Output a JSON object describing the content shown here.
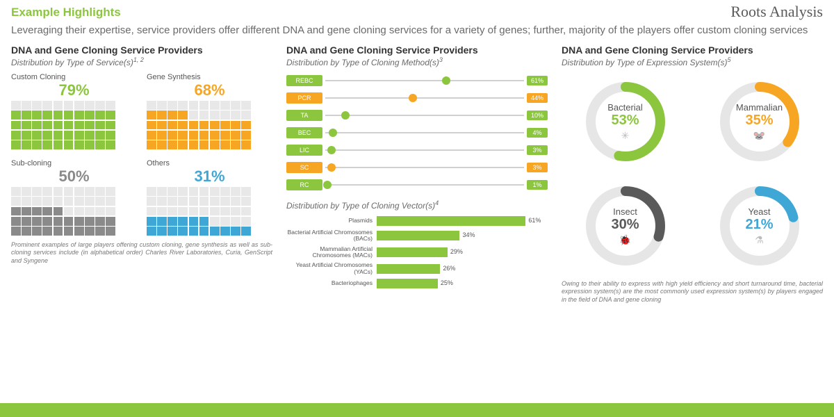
{
  "brand": "Roots Analysis",
  "header": {
    "title": "Example Highlights",
    "subtitle": "Leveraging their expertise, service providers offer different DNA and gene cloning services for a variety of genes; further, majority of the players offer custom cloning services"
  },
  "palette": {
    "green": "#8cc63f",
    "orange": "#f6a623",
    "grey": "#8a8a8a",
    "blue": "#3fa7d6",
    "darkgrey": "#5a5a5a",
    "cellEmpty": "#e8e8e8"
  },
  "col1": {
    "title": "DNA and Gene Cloning Service Providers",
    "subtitle": "Distribution by Type of Service(s)",
    "supers": "1, 2",
    "waffles": [
      {
        "label": "Custom Cloning",
        "pct": 79,
        "color": "#8cc63f",
        "rows": 5,
        "cols": 10
      },
      {
        "label": "Gene Synthesis",
        "pct": 68,
        "color": "#f6a623",
        "rows": 5,
        "cols": 10
      },
      {
        "label": "Sub-cloning",
        "pct": 50,
        "color": "#8a8a8a",
        "rows": 5,
        "cols": 10
      },
      {
        "label": "Others",
        "pct": 31,
        "color": "#3fa7d6",
        "rows": 5,
        "cols": 10
      }
    ],
    "footnote": "Prominent examples of large players offering custom cloning, gene synthesis as well as sub-cloning services include (in alphabetical order) Charles River Laboratories, Curia, GenScript and Syngene"
  },
  "col2": {
    "title": "DNA and Gene Cloning Service Providers",
    "subtitle1": "Distribution by Type of Cloning Method(s)",
    "supers1": "3",
    "lollipops": [
      {
        "label": "REBC",
        "pct": 61,
        "color": "#8cc63f"
      },
      {
        "label": "PCR",
        "pct": 44,
        "color": "#f6a623"
      },
      {
        "label": "TA",
        "pct": 10,
        "color": "#8cc63f"
      },
      {
        "label": "BEC",
        "pct": 4,
        "color": "#8cc63f"
      },
      {
        "label": "LIC",
        "pct": 3,
        "color": "#8cc63f"
      },
      {
        "label": "SC",
        "pct": 3,
        "color": "#f6a623"
      },
      {
        "label": "RC",
        "pct": 1,
        "color": "#8cc63f"
      }
    ],
    "subtitle2": "Distribution by Type of Cloning Vector(s)",
    "supers2": "4",
    "hbars": [
      {
        "label": "Plasmids",
        "pct": 61
      },
      {
        "label": "Bacterial Artificial Chromosomes (BACs)",
        "pct": 34
      },
      {
        "label": "Mammalian Artificial Chromosomes (MACs)",
        "pct": 29
      },
      {
        "label": "Yeast Artificial Chromosomes (YACs)",
        "pct": 26
      },
      {
        "label": "Bacteriophages",
        "pct": 25
      }
    ],
    "hbarMax": 70,
    "hbarColor": "#8cc63f"
  },
  "col3": {
    "title": "DNA and Gene Cloning Service Providers",
    "subtitle": "Distribution by Type of Expression System(s)",
    "supers": "5",
    "donuts": [
      {
        "label": "Bacterial",
        "pct": 53,
        "color": "#8cc63f",
        "icon": "✳"
      },
      {
        "label": "Mammalian",
        "pct": 35,
        "color": "#f6a623",
        "icon": "🐭"
      },
      {
        "label": "Insect",
        "pct": 30,
        "color": "#5a5a5a",
        "icon": "🐞"
      },
      {
        "label": "Yeast",
        "pct": 21,
        "color": "#3fa7d6",
        "icon": "⚗"
      }
    ],
    "donutTrack": "#e6e6e6",
    "donutStroke": 14,
    "footnote": "Owing to their ability to express with high yield efficiency and short turnaround time, bacterial expression system(s) are the most commonly used expression system(s) by players engaged in the field of DNA and gene cloning"
  }
}
